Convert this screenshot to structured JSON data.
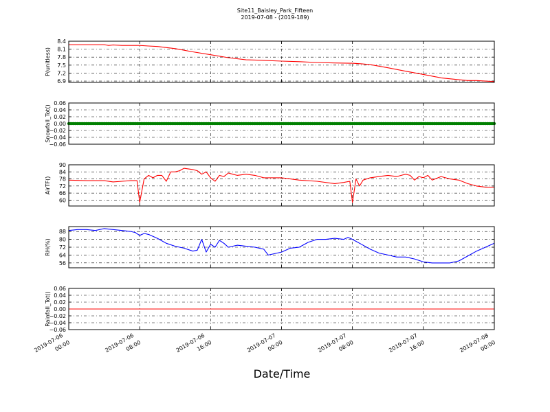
{
  "chart_data": {
    "type": "line",
    "title": "Site11_Baisley_Park_Fifteen",
    "subtitle": "2019-07-08 - (2019-189)",
    "xlabel": "Date/Time",
    "x_ticks": [
      {
        "line1": "2019-07-06",
        "line2": "00:00",
        "t": 0
      },
      {
        "line1": "2019-07-06",
        "line2": "08:00",
        "t": 8
      },
      {
        "line1": "2019-07-06",
        "line2": "16:00",
        "t": 16
      },
      {
        "line1": "2019-07-07",
        "line2": "00:00",
        "t": 24
      },
      {
        "line1": "2019-07-07",
        "line2": "08:00",
        "t": 32
      },
      {
        "line1": "2019-07-07",
        "line2": "16:00",
        "t": 40
      },
      {
        "line1": "2019-07-08",
        "line2": "00:00",
        "t": 48
      }
    ],
    "xlim": [
      0,
      48
    ],
    "panels": [
      {
        "name": "pressure",
        "ylabel": "P(unitless)",
        "color": "#ff0000",
        "ylim": [
          6.85,
          8.4
        ],
        "ticks": [
          6.9,
          7.2,
          7.5,
          7.8,
          8.1,
          8.4
        ],
        "tick_labels": [
          "6.9",
          "7.2",
          "7.5",
          "7.8",
          "8.1",
          "8.4"
        ],
        "x": [
          0,
          2,
          4,
          4.5,
          5,
          6,
          8,
          9,
          10,
          12,
          14,
          16,
          18,
          20,
          22,
          24,
          26,
          28,
          30,
          32,
          33,
          34,
          36,
          38,
          40,
          42,
          44,
          45,
          46,
          48
        ],
        "y": [
          8.27,
          8.27,
          8.27,
          8.24,
          8.26,
          8.24,
          8.24,
          8.22,
          8.2,
          8.12,
          8.0,
          7.89,
          7.78,
          7.7,
          7.68,
          7.65,
          7.63,
          7.6,
          7.58,
          7.57,
          7.55,
          7.52,
          7.4,
          7.27,
          7.15,
          7.02,
          6.95,
          6.92,
          6.92,
          6.88
        ]
      },
      {
        "name": "snowfall",
        "ylabel": "Snowfall_Tot()",
        "color": "#008000",
        "ylim": [
          -0.06,
          0.06
        ],
        "ticks": [
          -0.06,
          -0.04,
          -0.02,
          0.0,
          0.02,
          0.04,
          0.06
        ],
        "tick_labels": [
          "−0.06",
          "−0.04",
          "−0.02",
          "0.00",
          "0.02",
          "0.04",
          "0.06"
        ],
        "x": [
          0,
          48
        ],
        "y": [
          0,
          0
        ],
        "markers": true
      },
      {
        "name": "airtemp",
        "ylabel": "AirTF()",
        "color": "#ff0000",
        "ylim": [
          55,
          90
        ],
        "ticks": [
          60,
          66,
          72,
          78,
          84,
          90
        ],
        "tick_labels": [
          "60",
          "66",
          "72",
          "78",
          "84",
          "90"
        ],
        "x": [
          0,
          2,
          4,
          5,
          6,
          7,
          7.7,
          8.0,
          8.5,
          9,
          9.5,
          10,
          10.5,
          11,
          11.5,
          12,
          12.5,
          13,
          14,
          14.5,
          15,
          15.5,
          16,
          16.5,
          17,
          17.5,
          18,
          18.5,
          19,
          20,
          21,
          22,
          23,
          24,
          25,
          26,
          28,
          30,
          31,
          31.7,
          32.0,
          32.4,
          32.8,
          33.2,
          34,
          35,
          36,
          37,
          37.5,
          38,
          38.5,
          39,
          39.5,
          40,
          40.5,
          41,
          42,
          43,
          44,
          45,
          46,
          47,
          48
        ],
        "y": [
          77,
          76.5,
          76.5,
          75.5,
          76,
          76.5,
          76.5,
          58,
          78,
          81,
          79,
          81,
          81,
          76,
          84,
          84,
          85,
          87,
          86,
          85,
          82,
          84,
          79,
          76,
          81,
          80,
          83,
          82,
          81,
          82,
          81,
          79,
          79,
          79,
          78,
          77,
          76,
          74,
          75,
          76,
          58,
          78,
          72,
          77,
          79,
          80,
          81,
          80,
          81,
          82,
          81,
          77,
          80,
          79,
          81,
          77,
          80,
          78,
          77,
          74,
          72,
          71,
          71
        ]
      },
      {
        "name": "rh",
        "ylabel": "RH(%)",
        "color": "#0000ff",
        "ylim": [
          51,
          93
        ],
        "ticks": [
          56,
          64,
          72,
          80,
          88
        ],
        "tick_labels": [
          "56",
          "64",
          "72",
          "80",
          "88"
        ],
        "x": [
          0,
          1,
          2,
          3,
          4,
          5,
          6,
          7,
          7.5,
          8,
          8.5,
          9,
          10,
          11,
          12,
          13,
          14,
          14.5,
          15,
          15.5,
          16,
          16.5,
          17,
          17.5,
          18,
          19,
          20,
          21,
          22,
          22.5,
          23,
          24,
          25,
          26,
          27,
          28,
          29,
          30,
          31,
          31.5,
          32,
          33,
          34,
          35,
          36,
          37,
          38,
          39,
          40,
          41,
          42,
          43,
          44,
          45,
          46,
          47,
          48
        ],
        "y": [
          89,
          90,
          90,
          89,
          91,
          90,
          89,
          88,
          87,
          84,
          86,
          85,
          81,
          76,
          73,
          71,
          68,
          69,
          80,
          67,
          75,
          72,
          79,
          76,
          72,
          74,
          73,
          72,
          70,
          64,
          65,
          67,
          71,
          72,
          77,
          80,
          80,
          81,
          80,
          82,
          80,
          75,
          70,
          66,
          64,
          62,
          62,
          60,
          57,
          56,
          56,
          56,
          58,
          63,
          68,
          72,
          76
        ]
      },
      {
        "name": "rainfall",
        "ylabel": "Rainfall_Tot()",
        "color": "#ff0000",
        "ylim": [
          -0.06,
          0.06
        ],
        "ticks": [
          -0.06,
          -0.04,
          -0.02,
          0.0,
          0.02,
          0.04,
          0.06
        ],
        "tick_labels": [
          "−0.06",
          "−0.04",
          "−0.02",
          "0.00",
          "0.02",
          "0.04",
          "0.06"
        ],
        "x": [
          0,
          48
        ],
        "y": [
          0,
          0
        ]
      }
    ],
    "grid": true
  }
}
